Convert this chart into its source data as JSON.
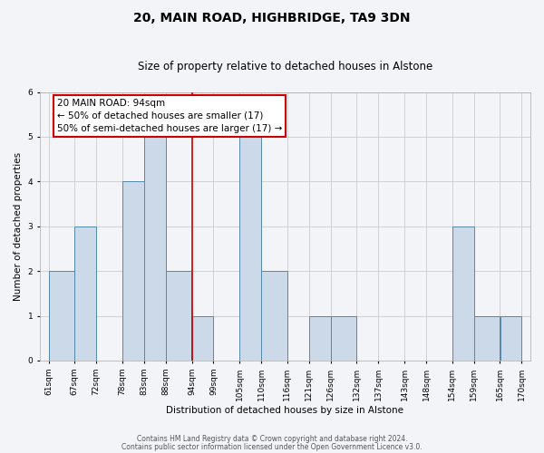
{
  "title": "20, MAIN ROAD, HIGHBRIDGE, TA9 3DN",
  "subtitle": "Size of property relative to detached houses in Alstone",
  "xlabel": "Distribution of detached houses by size in Alstone",
  "ylabel": "Number of detached properties",
  "bin_edges": [
    61,
    67,
    72,
    78,
    83,
    88,
    94,
    99,
    105,
    110,
    116,
    121,
    126,
    132,
    137,
    143,
    148,
    154,
    159,
    165,
    170
  ],
  "counts": [
    2,
    3,
    0,
    4,
    5,
    2,
    1,
    0,
    5,
    2,
    0,
    1,
    1,
    0,
    0,
    0,
    0,
    3,
    1,
    1
  ],
  "bar_color": "#ccd9e8",
  "bar_edge_color": "#5588aa",
  "vline_x": 94,
  "vline_color": "#cc0000",
  "ylim": [
    0,
    6
  ],
  "yticks": [
    0,
    1,
    2,
    3,
    4,
    5,
    6
  ],
  "annotation_line1": "20 MAIN ROAD: 94sqm",
  "annotation_line2": "← 50% of detached houses are smaller (17)",
  "annotation_line3": "50% of semi-detached houses are larger (17) →",
  "annotation_box_color": "#ffffff",
  "annotation_box_edge": "#cc0000",
  "footer1": "Contains HM Land Registry data © Crown copyright and database right 2024.",
  "footer2": "Contains public sector information licensed under the Open Government Licence v3.0.",
  "bg_color": "#f2f4f7",
  "plot_bg_color": "#f2f4f7",
  "grid_color": "#cccccc",
  "title_fontsize": 10,
  "subtitle_fontsize": 8.5,
  "axis_label_fontsize": 7.5,
  "tick_fontsize": 6.5,
  "annot_fontsize": 7.5,
  "footer_fontsize": 5.5
}
